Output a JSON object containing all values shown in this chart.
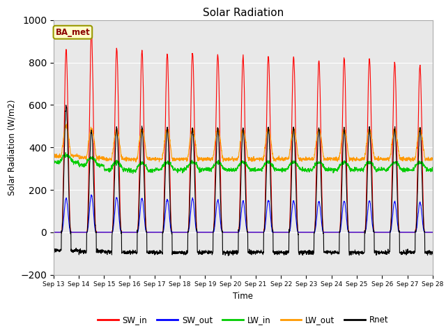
{
  "title": "Solar Radiation",
  "ylabel": "Solar Radiation (W/m2)",
  "xlabel": "Time",
  "ylim": [
    -200,
    1000
  ],
  "x_tick_labels": [
    "Sep 13",
    "Sep 14",
    "Sep 15",
    "Sep 16",
    "Sep 17",
    "Sep 18",
    "Sep 19",
    "Sep 20",
    "Sep 21",
    "Sep 22",
    "Sep 23",
    "Sep 24",
    "Sep 25",
    "Sep 26",
    "Sep 27",
    "Sep 28"
  ],
  "annotation": "BA_met",
  "bg_color": "#e8e8e8",
  "plot_bg_color": "#e8e8e8",
  "series_colors": {
    "SW_in": "#ff0000",
    "SW_out": "#0000ff",
    "LW_in": "#00cc00",
    "LW_out": "#ff9900",
    "Rnet": "#000000"
  },
  "num_days": 15,
  "points_per_day": 144,
  "sw_in_peaks": [
    860,
    940,
    865,
    855,
    840,
    845,
    835,
    825,
    830,
    825,
    810,
    820,
    820,
    800,
    785
  ],
  "sw_out_peaks": [
    160,
    175,
    165,
    160,
    155,
    158,
    152,
    148,
    150,
    148,
    145,
    148,
    148,
    144,
    140
  ],
  "lw_in_base": [
    330,
    315,
    295,
    290,
    295,
    295,
    295,
    295,
    295,
    295,
    295,
    295,
    295,
    295,
    295
  ],
  "lw_out_night": [
    360,
    350,
    345,
    345,
    345,
    345,
    345,
    345,
    345,
    345,
    345,
    345,
    345,
    345,
    345
  ],
  "lw_out_day_amp": [
    140,
    140,
    140,
    140,
    140,
    140,
    140,
    140,
    140,
    140,
    140,
    140,
    140,
    140,
    140
  ],
  "rnet_peaks": [
    600,
    480,
    490,
    490,
    490,
    490,
    490,
    490,
    490,
    490,
    490,
    490,
    490,
    490,
    490
  ],
  "rnet_night": [
    -85,
    -90,
    -95,
    -95,
    -95,
    -95,
    -95,
    -95,
    -95,
    -95,
    -95,
    -95,
    -95,
    -95,
    -95
  ]
}
